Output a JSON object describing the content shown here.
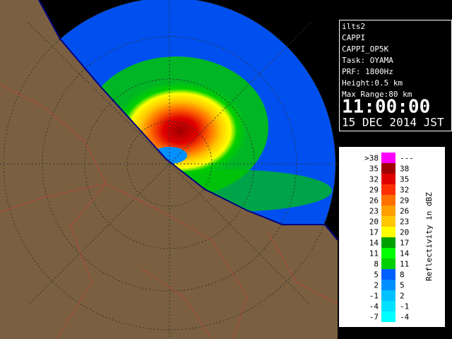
{
  "info": {
    "lines": [
      "ilts2",
      "CAPPI",
      "CAPPI_OP5K",
      "Task: OYAMA",
      "PRF: 1800Hz",
      "Height:0.5 km",
      "Max Range:80 km"
    ],
    "time": "11:00:00",
    "date": "15 DEC 2014 JST"
  },
  "legend": {
    "title": "Reflectivity in dBZ",
    "rows": [
      {
        "low": ">38",
        "high": "---",
        "color": "#ff00ff"
      },
      {
        "low": "35",
        "high": "38",
        "color": "#a00000"
      },
      {
        "low": "32",
        "high": "35",
        "color": "#e00000"
      },
      {
        "low": "29",
        "high": "32",
        "color": "#ff3000"
      },
      {
        "low": "26",
        "high": "29",
        "color": "#ff7000"
      },
      {
        "low": "23",
        "high": "26",
        "color": "#ffa000"
      },
      {
        "low": "20",
        "high": "23",
        "color": "#ffc800"
      },
      {
        "low": "17",
        "high": "20",
        "color": "#ffff00"
      },
      {
        "low": "14",
        "high": "17",
        "color": "#00a000"
      },
      {
        "low": "11",
        "high": "14",
        "color": "#00ff00"
      },
      {
        "low": "8",
        "high": "11",
        "color": "#00d000"
      },
      {
        "low": "5",
        "high": "8",
        "color": "#0060ff"
      },
      {
        "low": "2",
        "high": "5",
        "color": "#0090ff"
      },
      {
        "low": "-1",
        "high": "2",
        "color": "#00c0ff"
      },
      {
        "low": "-4",
        "high": "-1",
        "color": "#00e0ff"
      },
      {
        "low": "-7",
        "high": "-4",
        "color": "#00ffff"
      }
    ]
  }
}
